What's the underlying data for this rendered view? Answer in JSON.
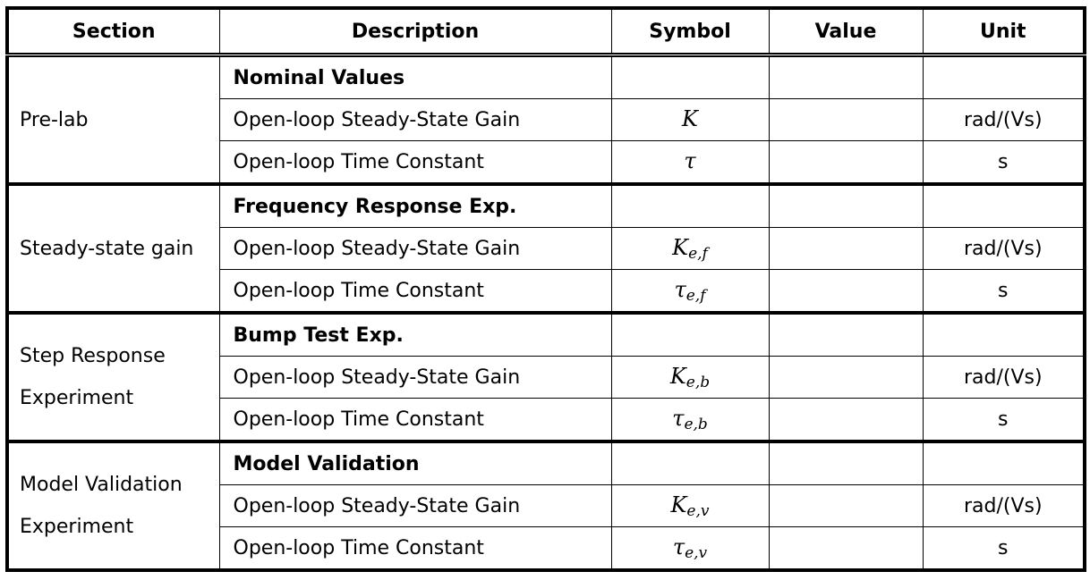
{
  "headers": [
    "Section",
    "Description",
    "Symbol",
    "Value",
    "Unit"
  ],
  "groups": [
    {
      "section": "Pre-lab",
      "heading": "Nominal Values",
      "rows": [
        {
          "desc": "Open-loop Steady-State Gain",
          "sym": "K",
          "sub": "",
          "value": "",
          "unit": "rad/(Vs)"
        },
        {
          "desc": "Open-loop Time Constant",
          "sym": "τ",
          "sub": "",
          "value": "",
          "unit": "s"
        }
      ]
    },
    {
      "section": "Steady-state gain",
      "heading": "Frequency Response Exp.",
      "rows": [
        {
          "desc": "Open-loop Steady-State Gain",
          "sym": "K",
          "sub": "e,f",
          "value": "",
          "unit": "rad/(Vs)"
        },
        {
          "desc": "Open-loop Time Constant",
          "sym": "τ",
          "sub": "e,f",
          "value": "",
          "unit": "s"
        }
      ]
    },
    {
      "section": "Step Response Experiment",
      "heading": "Bump Test Exp.",
      "rows": [
        {
          "desc": "Open-loop Steady-State Gain",
          "sym": "K",
          "sub": "e,b",
          "value": "",
          "unit": "rad/(Vs)"
        },
        {
          "desc": "Open-loop Time Constant",
          "sym": "τ",
          "sub": "e,b",
          "value": "",
          "unit": "s"
        }
      ]
    },
    {
      "section": "Model Validation Experiment",
      "heading": "Model Validation",
      "rows": [
        {
          "desc": "Open-loop Steady-State Gain",
          "sym": "K",
          "sub": "e,v",
          "value": "",
          "unit": "rad/(Vs)"
        },
        {
          "desc": "Open-loop Time Constant",
          "sym": "τ",
          "sub": "e,v",
          "value": "",
          "unit": "s"
        }
      ]
    }
  ]
}
